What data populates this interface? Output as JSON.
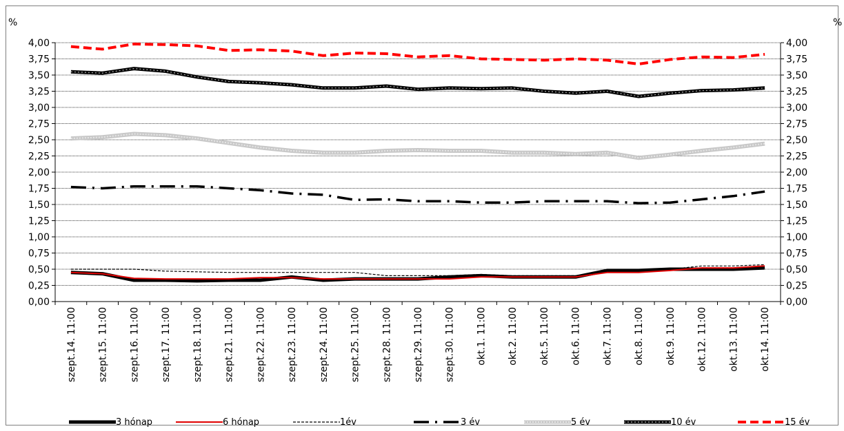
{
  "chart_data": {
    "type": "line",
    "ylabel_left": "%",
    "ylabel_right": "%",
    "ylim": [
      0,
      4
    ],
    "ytick_step": 0.25,
    "y_ticks": [
      "0,00",
      "0,25",
      "0,50",
      "0,75",
      "1,00",
      "1,25",
      "1,50",
      "1,75",
      "2,00",
      "2,25",
      "2,50",
      "2,75",
      "3,00",
      "3,25",
      "3,50",
      "3,75",
      "4,00"
    ],
    "x_ticks": [
      "szept.14. 11:00",
      "szept.15. 11:00",
      "szept.16. 11:00",
      "szept.17. 11:00",
      "szept.18. 11:00",
      "szept.21. 11:00",
      "szept.22. 11:00",
      "szept.23. 11:00",
      "szept.24. 11:00",
      "szept.25. 11:00",
      "szept.28. 11:00",
      "szept.29. 11:00",
      "szept.30. 11:00",
      "okt.1. 11:00",
      "okt.2. 11:00",
      "okt.5. 11:00",
      "okt.6. 11:00",
      "okt.7. 11:00",
      "okt.8. 11:00",
      "okt.9. 11:00",
      "okt.12. 11:00",
      "okt.13. 11:00",
      "okt.14. 11:00"
    ],
    "grid": true,
    "legend_position": "bottom",
    "series": [
      {
        "name": "3 hónap",
        "color": "#000000",
        "style": "thick-solid",
        "values": [
          0.45,
          0.43,
          0.33,
          0.33,
          0.32,
          0.33,
          0.33,
          0.38,
          0.33,
          0.35,
          0.35,
          0.35,
          0.38,
          0.4,
          0.38,
          0.38,
          0.38,
          0.48,
          0.48,
          0.5,
          0.5,
          0.5,
          0.52
        ]
      },
      {
        "name": "6 hónap",
        "color": "#e00000",
        "style": "thin-solid",
        "values": [
          0.45,
          0.43,
          0.36,
          0.35,
          0.35,
          0.35,
          0.37,
          0.37,
          0.35,
          0.35,
          0.35,
          0.35,
          0.35,
          0.38,
          0.38,
          0.38,
          0.38,
          0.45,
          0.45,
          0.48,
          0.52,
          0.52,
          0.55
        ]
      },
      {
        "name": "1év",
        "color": "#000000",
        "style": "dashed",
        "values": [
          0.5,
          0.5,
          0.5,
          0.47,
          0.46,
          0.45,
          0.45,
          0.45,
          0.45,
          0.45,
          0.4,
          0.4,
          0.4,
          0.42,
          0.4,
          0.4,
          0.4,
          0.47,
          0.47,
          0.5,
          0.55,
          0.55,
          0.57
        ]
      },
      {
        "name": "3 év",
        "color": "#000000",
        "style": "dash-dot",
        "values": [
          1.77,
          1.75,
          1.78,
          1.78,
          1.78,
          1.75,
          1.72,
          1.67,
          1.65,
          1.57,
          1.58,
          1.55,
          1.55,
          1.53,
          1.53,
          1.55,
          1.55,
          1.55,
          1.52,
          1.53,
          1.58,
          1.63,
          1.7
        ]
      },
      {
        "name": "5 év",
        "color": "#c0c0c0",
        "style": "thick-pattern",
        "values": [
          2.52,
          2.54,
          2.59,
          2.57,
          2.52,
          2.45,
          2.38,
          2.33,
          2.3,
          2.3,
          2.33,
          2.34,
          2.33,
          2.33,
          2.3,
          2.3,
          2.28,
          2.3,
          2.22,
          2.27,
          2.33,
          2.38,
          2.44
        ]
      },
      {
        "name": "10 év",
        "color": "#000000",
        "style": "thick-pattern-dark",
        "values": [
          3.55,
          3.53,
          3.6,
          3.56,
          3.47,
          3.4,
          3.38,
          3.35,
          3.3,
          3.3,
          3.33,
          3.28,
          3.3,
          3.29,
          3.3,
          3.25,
          3.22,
          3.25,
          3.17,
          3.22,
          3.26,
          3.27,
          3.3
        ]
      },
      {
        "name": "15 év",
        "color": "#ff0000",
        "style": "thick-dashed",
        "values": [
          3.94,
          3.9,
          3.98,
          3.97,
          3.95,
          3.88,
          3.89,
          3.87,
          3.8,
          3.84,
          3.83,
          3.78,
          3.8,
          3.75,
          3.74,
          3.73,
          3.75,
          3.73,
          3.67,
          3.74,
          3.78,
          3.77,
          3.82
        ]
      }
    ]
  }
}
